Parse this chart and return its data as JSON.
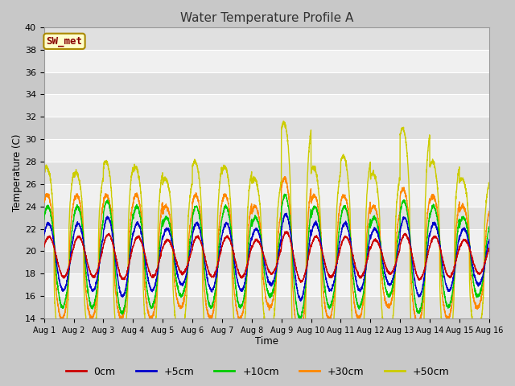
{
  "title": "Water Temperature Profile A",
  "xlabel": "Time",
  "ylabel": "Temperature (C)",
  "ylim": [
    14,
    40
  ],
  "yticks": [
    14,
    16,
    18,
    20,
    22,
    24,
    26,
    28,
    30,
    32,
    34,
    36,
    38,
    40
  ],
  "series_labels": [
    "0cm",
    "+5cm",
    "+10cm",
    "+30cm",
    "+50cm"
  ],
  "series_colors": [
    "#cc0000",
    "#0000cc",
    "#00cc00",
    "#ff8800",
    "#cccc00"
  ],
  "annotation_text": "SW_met",
  "annotation_bg": "#ffffcc",
  "annotation_border": "#aa8800",
  "annotation_text_color": "#880000",
  "n_days": 15,
  "base_temp": 19.5,
  "amp_0cm": 2.0,
  "amp_5cm": 3.2,
  "amp_10cm": 4.8,
  "amp_30cm": 5.5,
  "amp_50cm": 8.0
}
